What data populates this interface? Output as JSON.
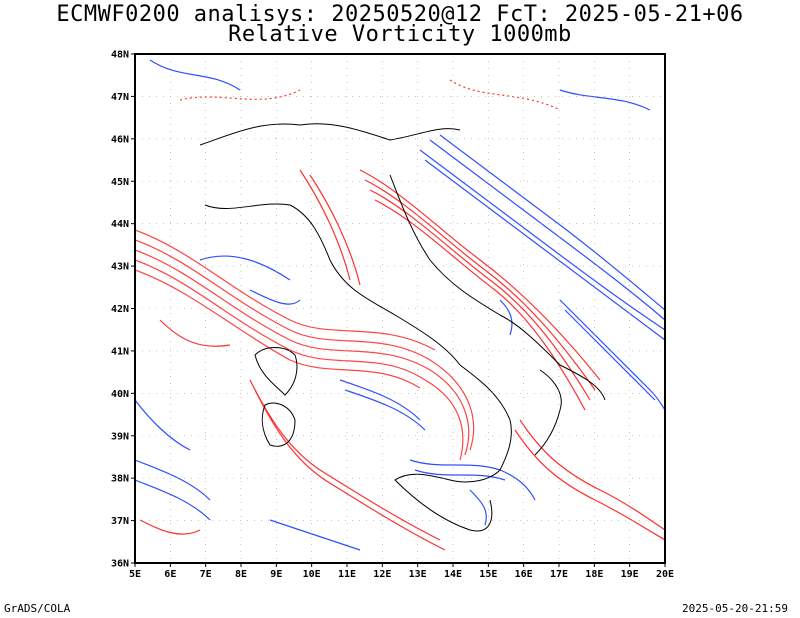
{
  "header": {
    "title_line1": "ECMWF0200 analisys: 20250520@12 FcT: 2025-05-21+06",
    "title_line2": "Relative Vorticity 1000mb"
  },
  "map": {
    "lat_labels": [
      "48N",
      "47N",
      "46N",
      "45N",
      "44N",
      "43N",
      "42N",
      "41N",
      "40N",
      "39N",
      "38N",
      "37N",
      "36N"
    ],
    "lon_labels": [
      "5E",
      "6E",
      "7E",
      "8E",
      "9E",
      "10E",
      "11E",
      "12E",
      "13E",
      "14E",
      "15E",
      "16E",
      "17E",
      "18E",
      "19E",
      "20E"
    ],
    "colors": {
      "positive_contour": "#ff3030",
      "negative_contour": "#3050ff",
      "coastline": "#000000",
      "grid": "#a0a0a0"
    }
  },
  "footer": {
    "left": "GrADS/COLA",
    "right": "2025-05-20-21:59"
  }
}
